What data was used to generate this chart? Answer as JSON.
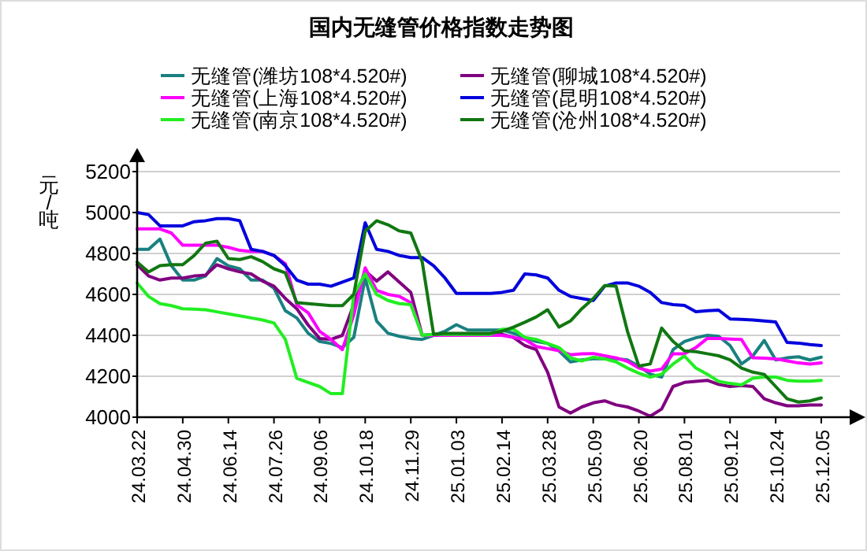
{
  "chart_data": {
    "type": "line",
    "title": "国内无缝管价格指数走势图",
    "ylabel": "元/吨",
    "categories": [
      "24.03.22",
      null,
      null,
      null,
      "24.04.30",
      null,
      null,
      null,
      "24.06.14",
      null,
      null,
      null,
      "24.07.26",
      null,
      null,
      null,
      "24.09.06",
      null,
      null,
      null,
      "24.10.18",
      null,
      null,
      null,
      "24.11.29",
      null,
      null,
      null,
      "25.01.03",
      null,
      null,
      null,
      "25.02.14",
      null,
      null,
      null,
      "25.03.28",
      null,
      null,
      null,
      "25.05.09",
      null,
      null,
      null,
      "25.06.20",
      null,
      null,
      null,
      "25.08.01",
      null,
      null,
      null,
      "25.09.12",
      null,
      null,
      null,
      "25.10.24",
      null,
      null,
      null,
      "25.12.05"
    ],
    "series": [
      {
        "name": "无缝管(潍坊108*4.520#)",
        "color": "#1a8080",
        "values": [
          4820,
          4820,
          4870,
          4740,
          4670,
          4670,
          4690,
          4775,
          4740,
          4725,
          4670,
          4670,
          4630,
          4520,
          4485,
          4410,
          4370,
          4360,
          4340,
          4390,
          4680,
          4470,
          4410,
          4395,
          4385,
          4380,
          4400,
          4420,
          4452,
          4426,
          4426,
          4426,
          4426,
          4410,
          4388,
          4370,
          4360,
          4324,
          4270,
          4280,
          4286,
          4286,
          4286,
          4280,
          4250,
          4210,
          4196,
          4330,
          4370,
          4388,
          4400,
          4395,
          4350,
          4260,
          4300,
          4375,
          4280,
          4290,
          4295,
          4280,
          4293
        ]
      },
      {
        "name": "无缝管(聊城108*4.520#)",
        "color": "#800080",
        "values": [
          4745,
          4690,
          4670,
          4680,
          4680,
          4690,
          4694,
          4745,
          4725,
          4710,
          4700,
          4665,
          4640,
          4580,
          4530,
          4450,
          4385,
          4380,
          4400,
          4550,
          4715,
          4665,
          4710,
          4660,
          4610,
          4400,
          4405,
          4405,
          4405,
          4405,
          4405,
          4405,
          4405,
          4390,
          4350,
          4330,
          4220,
          4050,
          4020,
          4050,
          4070,
          4080,
          4060,
          4050,
          4030,
          4005,
          4040,
          4150,
          4170,
          4175,
          4180,
          4160,
          4150,
          4155,
          4150,
          4090,
          4070,
          4056,
          4056,
          4060,
          4060
        ]
      },
      {
        "name": "无缝管(上海108*4.520#)",
        "color": "#ff00ff",
        "values": [
          4920,
          4920,
          4920,
          4900,
          4840,
          4840,
          4840,
          4840,
          4830,
          4815,
          4810,
          4810,
          4790,
          4750,
          4550,
          4510,
          4420,
          4380,
          4330,
          4500,
          4730,
          4620,
          4600,
          4590,
          4560,
          4400,
          4400,
          4400,
          4400,
          4400,
          4400,
          4400,
          4400,
          4390,
          4380,
          4345,
          4335,
          4325,
          4305,
          4310,
          4311,
          4300,
          4290,
          4273,
          4240,
          4225,
          4235,
          4310,
          4310,
          4340,
          4385,
          4385,
          4382,
          4380,
          4290,
          4288,
          4285,
          4275,
          4265,
          4260,
          4265
        ]
      },
      {
        "name": "无缝管(昆明108*4.520#)",
        "color": "#0000dd",
        "values": [
          5000,
          4990,
          4935,
          4935,
          4935,
          4955,
          4960,
          4970,
          4970,
          4960,
          4820,
          4810,
          4790,
          4740,
          4670,
          4650,
          4650,
          4640,
          4660,
          4680,
          4950,
          4820,
          4810,
          4790,
          4780,
          4780,
          4740,
          4680,
          4605,
          4605,
          4605,
          4605,
          4610,
          4620,
          4700,
          4695,
          4680,
          4620,
          4590,
          4580,
          4570,
          4640,
          4656,
          4656,
          4640,
          4610,
          4560,
          4550,
          4546,
          4515,
          4520,
          4523,
          4480,
          4478,
          4475,
          4470,
          4465,
          4365,
          4362,
          4355,
          4350
        ]
      },
      {
        "name": "无缝管(南京108*4.520#)",
        "color": "#22ee22",
        "values": [
          4656,
          4590,
          4555,
          4545,
          4530,
          4528,
          4525,
          4515,
          4505,
          4495,
          4485,
          4475,
          4460,
          4380,
          4190,
          4170,
          4150,
          4115,
          4115,
          4600,
          4700,
          4600,
          4570,
          4555,
          4550,
          4400,
          4405,
          4405,
          4405,
          4405,
          4405,
          4405,
          4430,
          4430,
          4390,
          4380,
          4360,
          4340,
          4290,
          4275,
          4293,
          4285,
          4270,
          4240,
          4215,
          4196,
          4210,
          4260,
          4299,
          4240,
          4210,
          4175,
          4165,
          4158,
          4190,
          4196,
          4196,
          4180,
          4176,
          4176,
          4180
        ]
      },
      {
        "name": "无缝管(沧州108*4.520#)",
        "color": "#117711",
        "values": [
          4758,
          4710,
          4740,
          4745,
          4745,
          4790,
          4850,
          4860,
          4775,
          4770,
          4784,
          4760,
          4725,
          4705,
          4560,
          4555,
          4550,
          4545,
          4545,
          4600,
          4910,
          4960,
          4940,
          4910,
          4900,
          4760,
          4405,
          4410,
          4410,
          4410,
          4410,
          4410,
          4420,
          4440,
          4464,
          4490,
          4525,
          4440,
          4470,
          4530,
          4580,
          4643,
          4640,
          4420,
          4250,
          4260,
          4435,
          4370,
          4324,
          4320,
          4310,
          4300,
          4280,
          4240,
          4220,
          4209,
          4150,
          4090,
          4074,
          4080,
          4094
        ]
      }
    ],
    "ylim": [
      4000,
      5200
    ],
    "yticks": [
      4000,
      4200,
      4400,
      4600,
      4800,
      5000,
      5200
    ],
    "grid": "y",
    "legend": "top"
  }
}
